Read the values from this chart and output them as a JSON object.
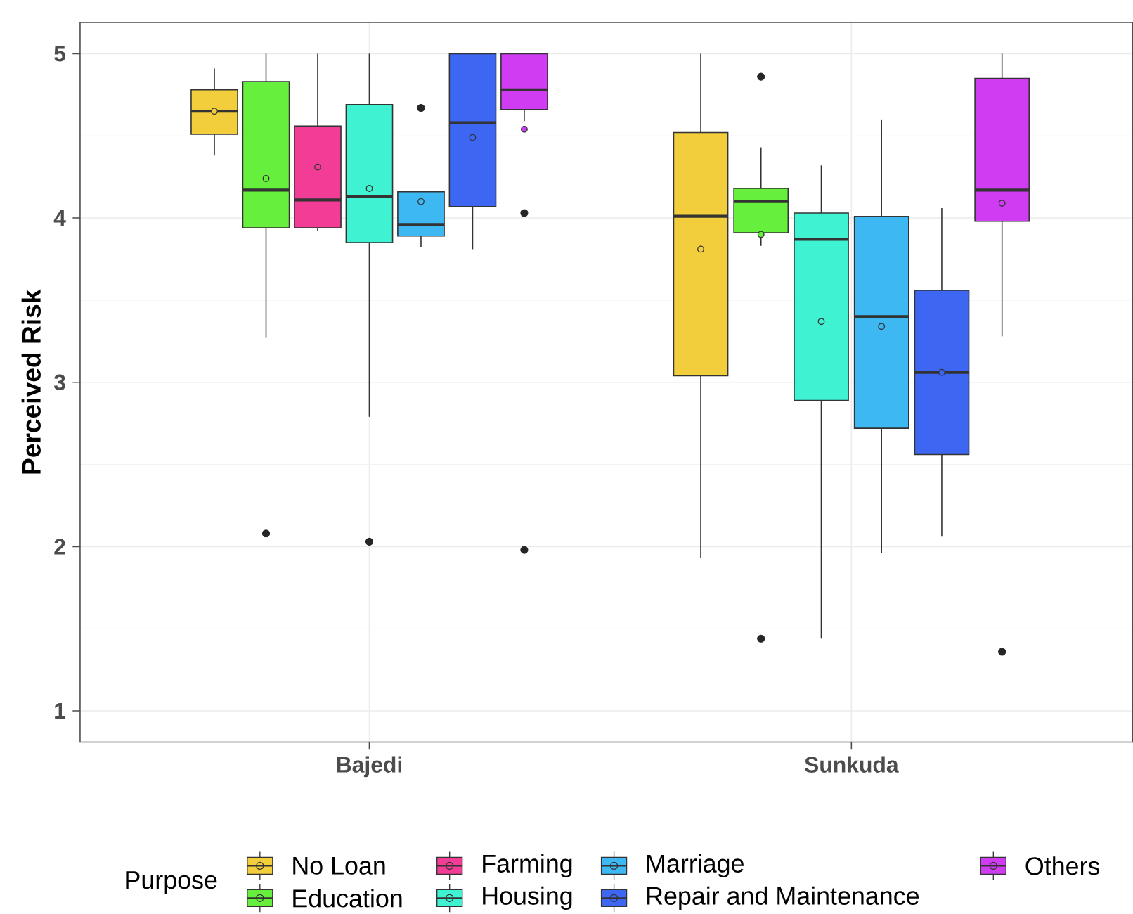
{
  "chart_data": {
    "type": "box",
    "ylabel": "Perceived Risk",
    "legend_title": "Purpose",
    "legend": "bottom",
    "grid": true,
    "categories": [
      "Bajedi",
      "Sunkuda"
    ],
    "ylim": [
      0.81,
      5.19
    ],
    "yticks": [
      1,
      2,
      3,
      4,
      5
    ],
    "series": [
      {
        "name": "No Loan",
        "color": "#f2cd3c",
        "boxes": [
          {
            "low": 4.38,
            "q1": 4.51,
            "median": 4.65,
            "q3": 4.78,
            "high": 4.91,
            "mean": 4.65
          },
          {
            "low": 1.93,
            "q1": 3.04,
            "median": 4.01,
            "q3": 4.52,
            "high": 5.0,
            "mean": 3.81
          }
        ]
      },
      {
        "name": "Education",
        "color": "#66ef3d",
        "boxes": [
          {
            "low": 3.27,
            "q1": 3.94,
            "median": 4.17,
            "q3": 4.83,
            "high": 5.0,
            "mean": 4.24,
            "outliers": [
              2.08
            ]
          },
          {
            "low": 3.83,
            "q1": 3.91,
            "median": 4.1,
            "q3": 4.18,
            "high": 4.43,
            "mean": 3.9,
            "outliers": [
              4.86,
              1.44
            ]
          }
        ]
      },
      {
        "name": "Farming",
        "color": "#f23c96",
        "boxes": [
          {
            "low": 3.92,
            "q1": 3.94,
            "median": 4.11,
            "q3": 4.56,
            "high": 5.0,
            "mean": 4.31
          },
          null
        ]
      },
      {
        "name": "Housing",
        "color": "#3ef2d2",
        "boxes": [
          {
            "low": 2.79,
            "q1": 3.85,
            "median": 4.13,
            "q3": 4.69,
            "high": 5.0,
            "mean": 4.18,
            "outliers": [
              2.03
            ]
          },
          {
            "low": 1.44,
            "q1": 2.89,
            "median": 3.87,
            "q3": 4.03,
            "high": 4.32,
            "mean": 3.37
          }
        ]
      },
      {
        "name": "Marriage",
        "color": "#3db8f2",
        "boxes": [
          {
            "low": 3.82,
            "q1": 3.89,
            "median": 3.96,
            "q3": 4.16,
            "high": 4.16,
            "mean": 4.1,
            "outliers": [
              4.67
            ]
          },
          {
            "low": 1.96,
            "q1": 2.72,
            "median": 3.4,
            "q3": 4.01,
            "high": 4.6,
            "mean": 3.34
          }
        ]
      },
      {
        "name": "Repair and Maintenance",
        "color": "#3d66f2",
        "boxes": [
          {
            "low": 3.81,
            "q1": 4.07,
            "median": 4.58,
            "q3": 5.0,
            "high": 5.0,
            "mean": 4.49
          },
          {
            "low": 2.06,
            "q1": 2.56,
            "median": 3.06,
            "q3": 3.56,
            "high": 4.06,
            "mean": 3.06
          }
        ]
      },
      {
        "name": "Others",
        "color": "#cf3cf2",
        "boxes": [
          {
            "low": 4.59,
            "q1": 4.66,
            "median": 4.78,
            "q3": 5.0,
            "high": 5.0,
            "mean": 4.54,
            "outliers": [
              4.03,
              1.98
            ]
          },
          {
            "low": 3.28,
            "q1": 3.98,
            "median": 4.17,
            "q3": 4.85,
            "high": 5.0,
            "mean": 4.09,
            "outliers": [
              1.36
            ]
          }
        ]
      }
    ]
  }
}
